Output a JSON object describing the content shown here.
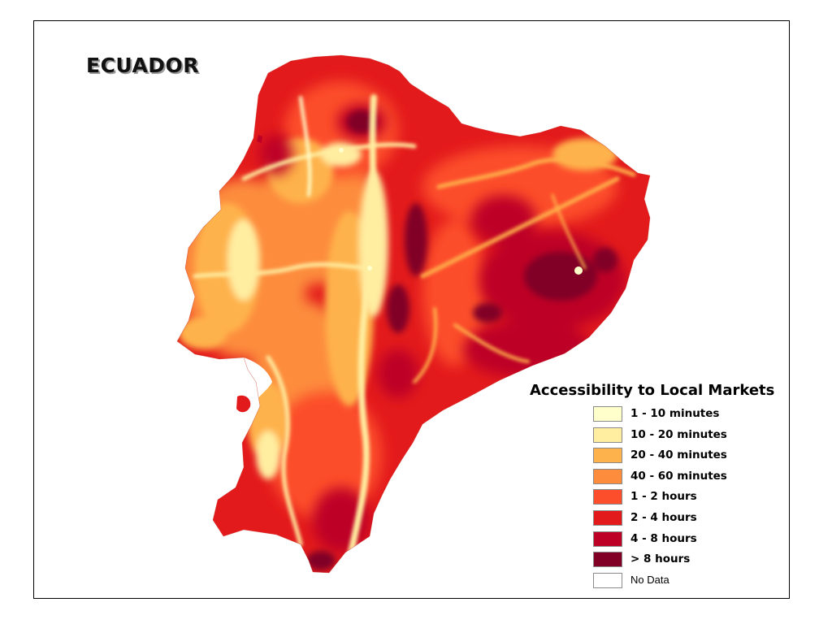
{
  "map": {
    "title": "ECUADOR"
  },
  "legend": {
    "title": "Accessibility to Local Markets",
    "items": [
      {
        "label": "1 - 10 minutes",
        "color": "#ffffcc"
      },
      {
        "label": "10 - 20 minutes",
        "color": "#ffeda0"
      },
      {
        "label": "20 - 40 minutes",
        "color": "#feb24c"
      },
      {
        "label": "40 - 60 minutes",
        "color": "#fd8d3c"
      },
      {
        "label": "1 - 2 hours",
        "color": "#fc4e2a"
      },
      {
        "label": "2 - 4 hours",
        "color": "#e31a1c"
      },
      {
        "label": "4 - 8 hours",
        "color": "#bd0026"
      },
      {
        "label": "> 8 hours",
        "color": "#800026"
      },
      {
        "label": "No Data",
        "color": "#ffffff"
      }
    ]
  }
}
